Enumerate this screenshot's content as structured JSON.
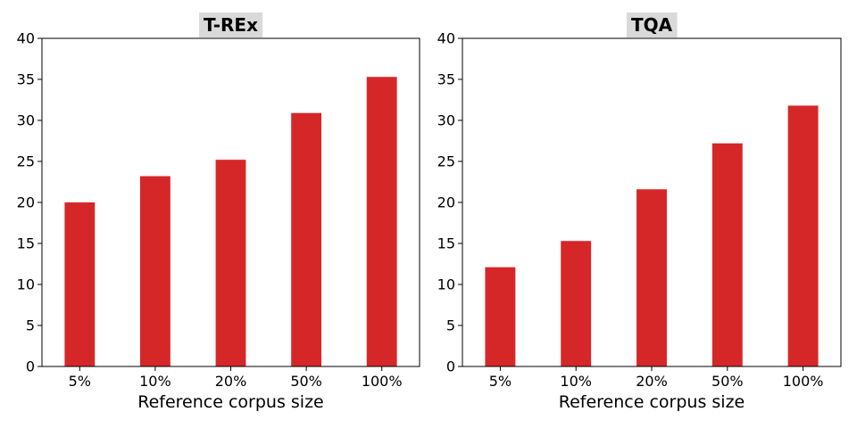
{
  "chart_data": [
    {
      "type": "bar",
      "title": "T-REx",
      "xlabel": "Reference corpus size",
      "ylabel": "",
      "categories": [
        "5%",
        "10%",
        "20%",
        "50%",
        "100%"
      ],
      "values": [
        20.0,
        23.2,
        25.2,
        30.9,
        35.3
      ],
      "ylim": [
        0,
        40
      ],
      "yticks": [
        0,
        5,
        10,
        15,
        20,
        25,
        30,
        35,
        40
      ],
      "grid": false,
      "bar_color": "#d62728",
      "title_bg": "#d9d9d9"
    },
    {
      "type": "bar",
      "title": "TQA",
      "xlabel": "Reference corpus size",
      "ylabel": "",
      "categories": [
        "5%",
        "10%",
        "20%",
        "50%",
        "100%"
      ],
      "values": [
        12.1,
        15.3,
        21.6,
        27.2,
        31.8
      ],
      "ylim": [
        0,
        40
      ],
      "yticks": [
        0,
        5,
        10,
        15,
        20,
        25,
        30,
        35,
        40
      ],
      "grid": false,
      "bar_color": "#d62728",
      "title_bg": "#d9d9d9"
    }
  ]
}
